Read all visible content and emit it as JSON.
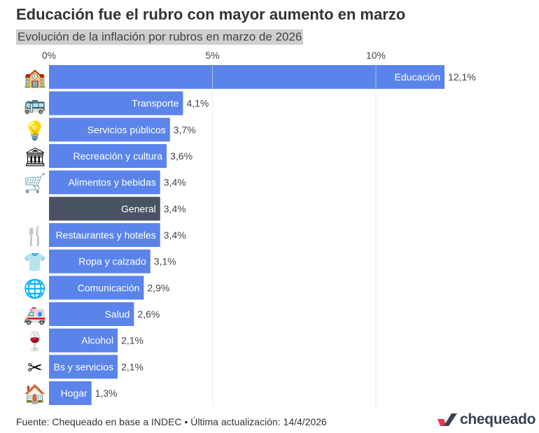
{
  "title": "Educación fue el rubro con mayor aumento en marzo",
  "subtitle": "Evolución de la inflación por rubros en marzo de 2026",
  "footer": "Fuente: Chequeado en base a INDEC • Última actualización: 14/4/2026",
  "logo_text": "chequeado",
  "colors": {
    "bar": "#5b84ea",
    "highlight": "#4a5364",
    "grid": "#dddddd",
    "logo_red": "#e8384f",
    "logo_dark": "#3a4150"
  },
  "chart_data": {
    "type": "bar",
    "orientation": "horizontal",
    "xlim": [
      0,
      12.1
    ],
    "xticks": [
      0,
      5,
      10
    ],
    "xtick_labels": [
      "0%",
      "5%",
      "10%"
    ],
    "grid": true,
    "categories": [
      "Educación",
      "Transporte",
      "Servicios públicos",
      "Recreación y cultura",
      "Alimentos y bebidas",
      "General",
      "Restaurantes y hoteles",
      "Ropa y calzado",
      "Comunicación",
      "Salud",
      "Alcohol",
      "Bs y servicios",
      "Hogar"
    ],
    "values": [
      12.1,
      4.1,
      3.7,
      3.6,
      3.4,
      3.4,
      3.4,
      3.1,
      2.9,
      2.6,
      2.1,
      2.1,
      1.3
    ],
    "value_labels": [
      "12,1%",
      "4,1%",
      "3,7%",
      "3,6%",
      "3,4%",
      "3,4%",
      "3,4%",
      "3,1%",
      "2,9%",
      "2,6%",
      "2,1%",
      "2,1%",
      "1,3%"
    ],
    "icons": [
      "school-icon",
      "bus-icon",
      "lightbulb-icon",
      "classical-building-icon",
      "shopping-cart-icon",
      "",
      "fork-knife-icon",
      "clothes-icon",
      "globe-icon",
      "ambulance-icon",
      "wine-glass-icon",
      "scissors-icon",
      "house-icon"
    ],
    "icon_glyphs": [
      "🏫",
      "🚌",
      "💡",
      "🏛",
      "🛒",
      "",
      "🍴",
      "👕",
      "🌐",
      "🚑",
      "🍷",
      "✂",
      "🏠"
    ],
    "highlighted": [
      "General"
    ]
  }
}
